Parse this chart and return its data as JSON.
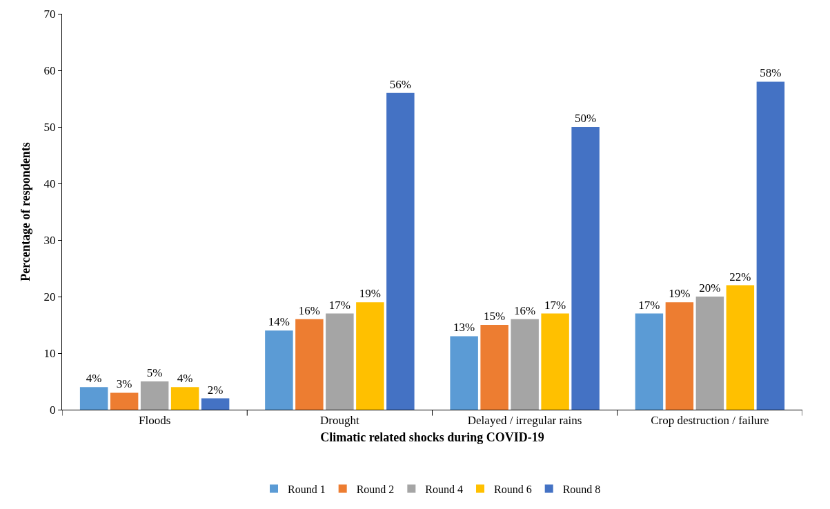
{
  "chart_data": {
    "type": "bar",
    "xlabel": "Climatic related shocks during COVID-19",
    "ylabel": "Percentage of respondents",
    "categories": [
      "Floods",
      "Drought",
      "Delayed / irregular rains",
      "Crop destruction / failure"
    ],
    "series": [
      {
        "name": "Round 1",
        "color": "#5b9bd5",
        "values": [
          4,
          14,
          13,
          17
        ],
        "value_labels": [
          "4%",
          "14%",
          "13%",
          "17%"
        ]
      },
      {
        "name": "Round 2",
        "color": "#ed7d31",
        "values": [
          3,
          16,
          15,
          19
        ],
        "value_labels": [
          "3%",
          "16%",
          "15%",
          "19%"
        ]
      },
      {
        "name": "Round 4",
        "color": "#a5a5a5",
        "values": [
          5,
          17,
          16,
          20
        ],
        "value_labels": [
          "5%",
          "17%",
          "16%",
          "20%"
        ]
      },
      {
        "name": "Round 6",
        "color": "#ffc000",
        "values": [
          4,
          19,
          17,
          22
        ],
        "value_labels": [
          "4%",
          "19%",
          "17%",
          "22%"
        ]
      },
      {
        "name": "Round 8",
        "color": "#4472c4",
        "values": [
          2,
          56,
          50,
          58
        ],
        "value_labels": [
          "2%",
          "56%",
          "50%",
          "58%"
        ]
      }
    ],
    "ylim": [
      0,
      70
    ],
    "yticks": [
      0,
      10,
      20,
      30,
      40,
      50,
      60,
      70
    ],
    "grid": false,
    "legend": "bottom"
  }
}
